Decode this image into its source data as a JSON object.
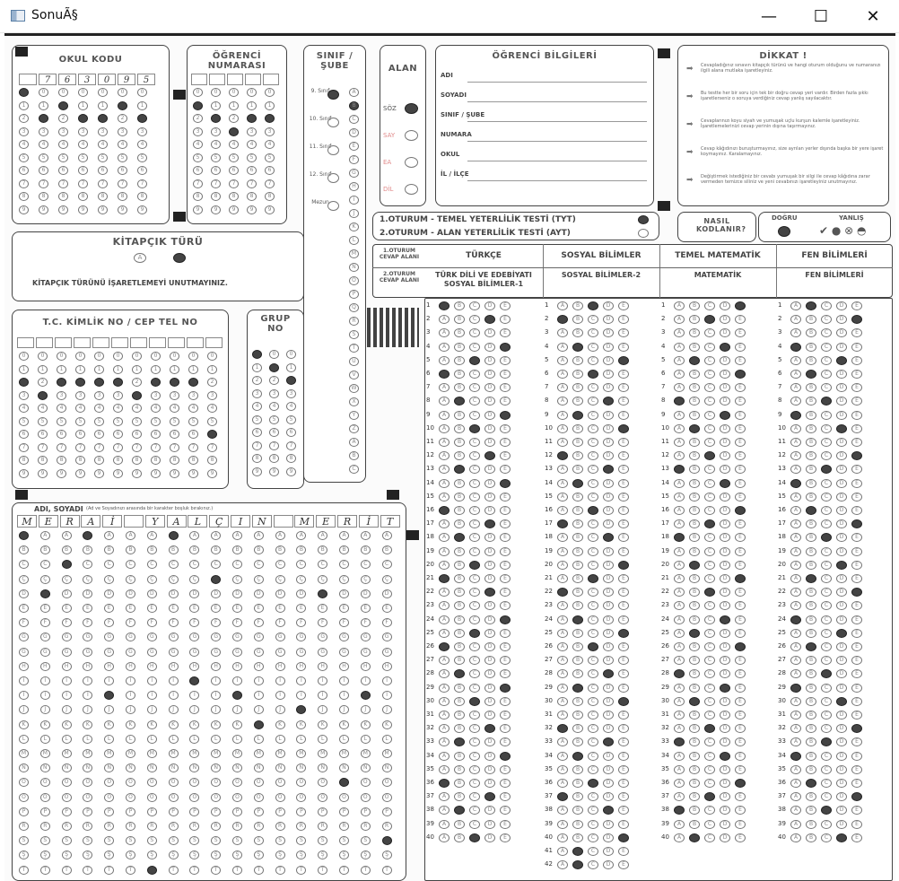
{
  "window": {
    "title": "SonuÃ§",
    "min_glyph": "—",
    "max_glyph": "☐",
    "close_glyph": "✕"
  },
  "sheet": {
    "okul_kodu": "OKUL KODU",
    "ogrenci_numarasi": "ÖĞRENCİ NUMARASI",
    "sinif_sube": "SINIF / ŞUBE",
    "alan": "ALAN",
    "alan_options": [
      "SÖZ",
      "SAY",
      "EA",
      "DİL"
    ],
    "sinif_options": [
      "9. Sınıf",
      "10. Sınıf",
      "11. Sınıf",
      "12. Sınıf",
      "Mezun"
    ],
    "ogrenci_bilgileri": "ÖĞRENCİ BİLGİLERİ",
    "info_fields": [
      "ADI",
      "SOYADI",
      "SINIF / ŞUBE",
      "NUMARA",
      "OKUL",
      "İL / İLÇE"
    ],
    "dikkat": "DİKKAT !",
    "dikkat_items": [
      "Cevapladığınız sınavın kitapçık türünü ve hangi oturum olduğunu ve numaranızı ilgili alana mutlaka işaretleyiniz.",
      "Bu testte her bir soru için tek bir doğru cevap yeri vardır. Birden fazla şıkkı işaretlerseniz o soruya verdiğiniz cevap yanlış sayılacaktır.",
      "Cevaplarınızı koyu siyah ve yumuşak uçlu kurşun kalemle işaretleyiniz. İşaretlemelerinizi cevap yerinin dışına taşırmayınız.",
      "Cevap kâğıdınızı buruşturmayınız, size ayrılan yerler dışında başka bir yere işaret koymayınız. Karalamayınız.",
      "Değiştirmek istediğiniz bir cevabı yumuşak bir silgi ile cevap kâğıdına zarar vermeden temizce siliniz ve yeni cevabınızı işaretleyiniz unutmayınız."
    ],
    "oturum1": "1.OTURUM - TEMEL YETERLİLİK TESTİ (TYT)",
    "oturum2": "2.OTURUM - ALAN YETERLİLİK TESTİ (AYT)",
    "nasil": "NASIL KODLANIR?",
    "dogru": "DOĞRU",
    "yanlis": "YANLIŞ",
    "kitapcik_turu": "KİTAPÇIK TÜRÜ",
    "kitapcik_a": "A",
    "kitapcik_warn": "KİTAPÇIK TÜRÜNÜ İŞARETLEMEYİ UNUTMAYINIZ.",
    "tc": "T.C. KİMLİK NO / CEP TEL NO",
    "grup": "GRUP NO",
    "adi_soyadi": "ADI, SOYADI",
    "adi_note": "(Ad ve Soyadınızı arasında bir karakter boşluk bırakınız.)",
    "name_written": [
      "M",
      "E",
      "R",
      "A",
      "İ",
      "",
      "Y",
      "A",
      "L",
      "Ç",
      "I",
      "N",
      "",
      "M",
      "E",
      "R",
      "İ",
      "T"
    ],
    "cevap1": "1.OTURUM CEVAP ALANI",
    "cevap2": "2.OTURUM CEVAP ALANI",
    "subjects_tyt": [
      "TÜRKÇE",
      "SOSYAL BİLİMLER",
      "TEMEL MATEMATİK",
      "FEN BİLİMLERİ"
    ],
    "subjects_ayt": [
      "TÜRK DİLİ VE EDEBİYATI SOSYAL BİLİMLER-1",
      "SOSYAL BİLİMLER-2",
      "MATEMATİK",
      "FEN BİLİMLERİ"
    ],
    "choices": [
      "A",
      "B",
      "C",
      "D",
      "E"
    ],
    "okul_kodu_written": [
      "",
      "7",
      "6",
      "3",
      "0",
      "9",
      "5"
    ]
  }
}
